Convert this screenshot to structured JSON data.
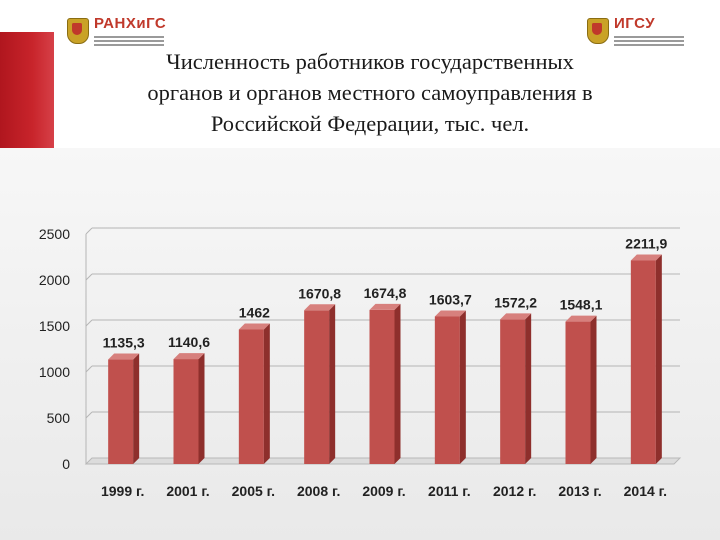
{
  "header": {
    "logo_left": "РАНХиГС",
    "logo_right": "ИГСУ",
    "title_lines": [
      "Численность работников государственных",
      "органов  и органов местного самоуправления  в",
      "Российской Федерации,  тыс. чел."
    ]
  },
  "colors": {
    "bar_front": "#c0504d",
    "bar_side": "#8e2f2c",
    "bar_top": "#d7807d",
    "accent": "#c0161e"
  },
  "chart_data": {
    "type": "bar",
    "title": "",
    "xlabel": "",
    "ylabel": "",
    "categories": [
      "1999 г.",
      "2001 г.",
      "2005 г.",
      "2008 г.",
      "2009 г.",
      "2011 г.",
      "2012 г.",
      "2013 г.",
      "2014 г."
    ],
    "values": [
      1135.3,
      1140.6,
      1462,
      1670.8,
      1674.8,
      1603.7,
      1572.2,
      1548.1,
      2211.9
    ],
    "value_labels": [
      "1135,3",
      "1140,6",
      "1462",
      "1670,8",
      "1674,8",
      "1603,7",
      "1572,2",
      "1548,1",
      "2211,9"
    ],
    "ylim": [
      0,
      2500
    ],
    "yticks": [
      0,
      500,
      1000,
      1500,
      2000,
      2500
    ],
    "grid": true,
    "legend": "none"
  }
}
